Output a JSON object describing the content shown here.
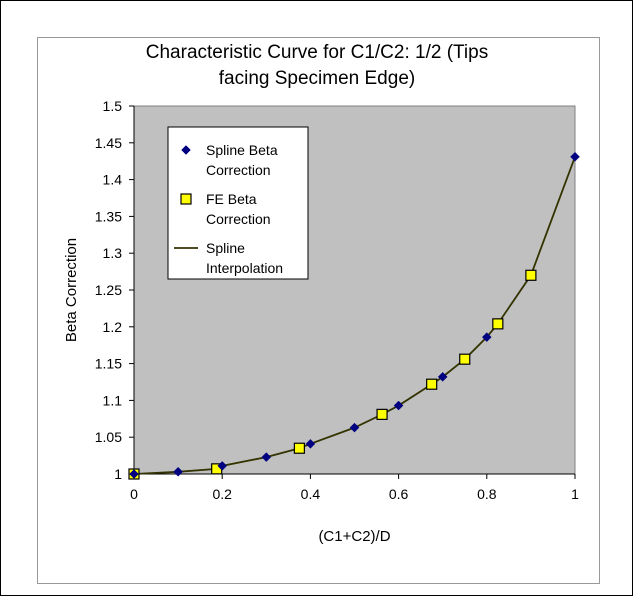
{
  "chart_data": {
    "type": "scatter",
    "title_lines": [
      "Characteristic Curve for C1/C2: 1/2 (Tips",
      "facing Specimen Edge)"
    ],
    "xlabel": "(C1+C2)/D",
    "ylabel": "Beta Correction",
    "xlim": [
      0,
      1
    ],
    "ylim": [
      1,
      1.5
    ],
    "x_ticks": [
      "0",
      "0.2",
      "0.4",
      "0.6",
      "0.8",
      "1"
    ],
    "y_ticks": [
      "1",
      "1.05",
      "1.1",
      "1.15",
      "1.2",
      "1.25",
      "1.3",
      "1.35",
      "1.4",
      "1.45",
      "1.5"
    ],
    "grid": false,
    "plot_background": "#c0c0c0",
    "legend_position": "top-left",
    "series": [
      {
        "name_lines": [
          "Spline Beta",
          "Correction"
        ],
        "marker": "diamond",
        "color": "#000080",
        "x": [
          0,
          0.1,
          0.2,
          0.3,
          0.4,
          0.5,
          0.6,
          0.7,
          0.8,
          1.0
        ],
        "y": [
          1.0,
          1.003,
          1.011,
          1.023,
          1.041,
          1.063,
          1.093,
          1.132,
          1.186,
          1.431
        ]
      },
      {
        "name_lines": [
          "FE Beta",
          "Correction"
        ],
        "marker": "square",
        "color": "#ffff00",
        "edge_color": "#000000",
        "x": [
          0,
          0.1875,
          0.375,
          0.5625,
          0.675,
          0.75,
          0.825,
          0.9
        ],
        "y": [
          1.0,
          1.007,
          1.035,
          1.081,
          1.122,
          1.156,
          1.204,
          1.27
        ]
      },
      {
        "name_lines": [
          "Spline",
          "Interpolation"
        ],
        "marker": "line",
        "color": "#333300",
        "x": [
          0,
          0.1,
          0.1875,
          0.2,
          0.3,
          0.375,
          0.4,
          0.5,
          0.5625,
          0.6,
          0.675,
          0.7,
          0.75,
          0.8,
          0.825,
          0.9,
          1.0
        ],
        "y": [
          1.0,
          1.003,
          1.007,
          1.011,
          1.023,
          1.035,
          1.041,
          1.063,
          1.081,
          1.093,
          1.122,
          1.132,
          1.156,
          1.186,
          1.204,
          1.27,
          1.431
        ]
      }
    ]
  }
}
